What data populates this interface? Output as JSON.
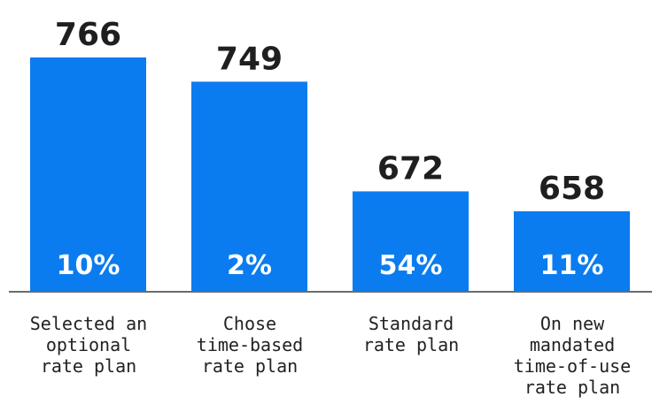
{
  "colors": {
    "bar": "#0a7cf0",
    "axis": "#6b6b6b",
    "value_text": "#1f1f1f",
    "share_text": "#ffffff",
    "label_text": "#222222"
  },
  "chart_data": {
    "type": "bar",
    "title": "",
    "xlabel": "",
    "ylabel": "",
    "grid": false,
    "legend": "none",
    "ylim": [
      0,
      800
    ],
    "categories": [
      "Selected an\noptional\nrate plan",
      "Chose\ntime-based\nrate plan",
      "Standard\nrate plan",
      "On new\nmandated\ntime-of-use\nrate plan"
    ],
    "values": [
      766,
      749,
      672,
      658
    ],
    "value_labels": [
      "766",
      "749",
      "672",
      "658"
    ],
    "share_labels": [
      "10%",
      "2%",
      "54%",
      "11%"
    ]
  }
}
